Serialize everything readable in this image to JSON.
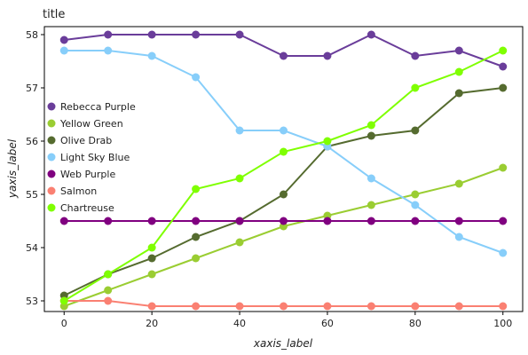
{
  "chart_data": {
    "type": "line",
    "title": "title",
    "xlabel": "xaxis_label",
    "ylabel": "yaxis_label",
    "xlim": [
      -4.5,
      104.5
    ],
    "ylim": [
      52.8,
      58.15
    ],
    "xticks": [
      0,
      20,
      40,
      60,
      80,
      100
    ],
    "yticks": [
      53,
      54,
      55,
      56,
      57,
      58
    ],
    "grid": false,
    "legend_position": "top-left",
    "x": [
      0,
      10,
      20,
      30,
      40,
      50,
      60,
      70,
      80,
      90,
      100
    ],
    "series": [
      {
        "name": "Rebecca Purple",
        "color": "#6a3d9a",
        "values": [
          57.9,
          58.0,
          58.0,
          58.0,
          58.0,
          57.6,
          57.6,
          58.0,
          57.6,
          57.7,
          57.4
        ]
      },
      {
        "name": "Yellow Green",
        "color": "#9acd32",
        "values": [
          52.9,
          53.2,
          53.5,
          53.8,
          54.1,
          54.4,
          54.6,
          54.8,
          55.0,
          55.2,
          55.5
        ]
      },
      {
        "name": "Olive Drab",
        "color": "#556b2f",
        "values": [
          53.1,
          53.5,
          53.8,
          54.2,
          54.5,
          55.0,
          55.9,
          56.1,
          56.2,
          56.9,
          57.0
        ]
      },
      {
        "name": "Light Sky Blue",
        "color": "#87cefa",
        "values": [
          57.7,
          57.7,
          57.6,
          57.2,
          56.2,
          56.2,
          55.9,
          55.3,
          54.8,
          54.2,
          53.9
        ]
      },
      {
        "name": "Web Purple",
        "color": "#800080",
        "values": [
          54.5,
          54.5,
          54.5,
          54.5,
          54.5,
          54.5,
          54.5,
          54.5,
          54.5,
          54.5,
          54.5
        ]
      },
      {
        "name": "Salmon",
        "color": "#fa8072",
        "values": [
          53.0,
          53.0,
          52.9,
          52.9,
          52.9,
          52.9,
          52.9,
          52.9,
          52.9,
          52.9,
          52.9
        ]
      },
      {
        "name": "Chartreuse",
        "color": "#7fff00",
        "values": [
          53.0,
          53.5,
          54.0,
          55.1,
          55.3,
          55.8,
          56.0,
          56.3,
          57.0,
          57.3,
          57.7
        ]
      }
    ]
  }
}
